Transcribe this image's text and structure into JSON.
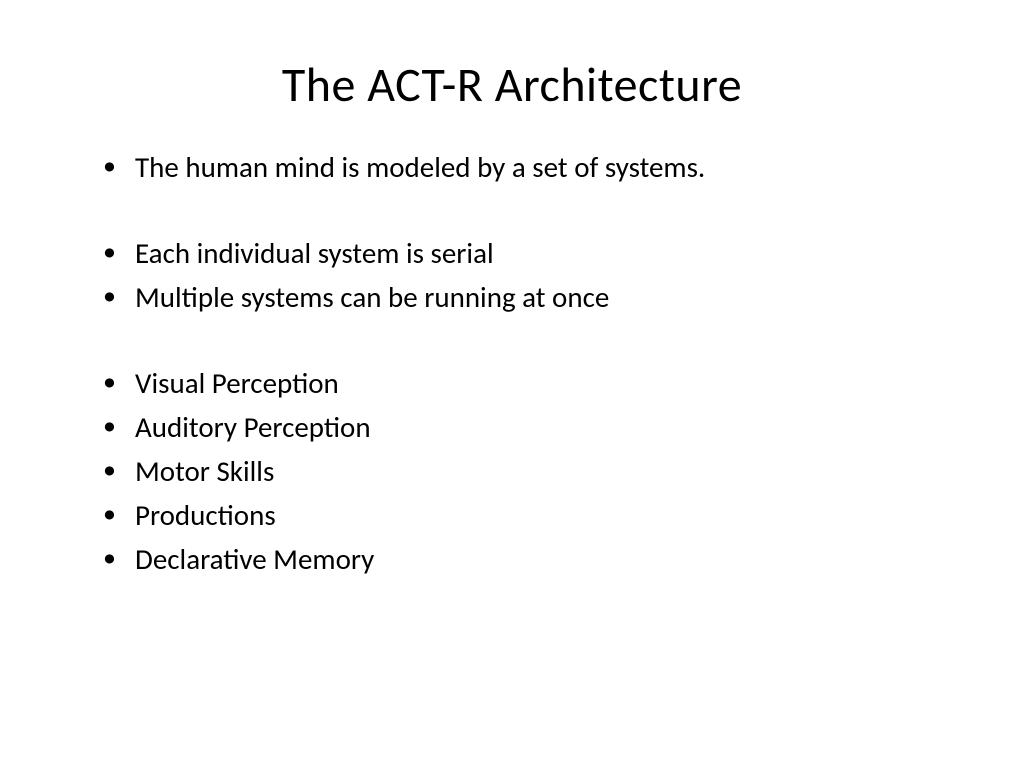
{
  "slide": {
    "title": "The ACT-R Architecture",
    "bullets": {
      "group1": [
        "The human mind is modeled by a set of systems."
      ],
      "group2": [
        "Each individual system is serial",
        "Multiple systems can be running at once"
      ],
      "group3": [
        "Visual Perception",
        "Auditory Perception",
        "Motor Skills",
        "Productions",
        "Declarative Memory"
      ]
    },
    "styling": {
      "background_color": "#ffffff",
      "text_color": "#000000",
      "title_fontsize": 48,
      "body_fontsize": 29,
      "font_family": "Calibri"
    }
  }
}
